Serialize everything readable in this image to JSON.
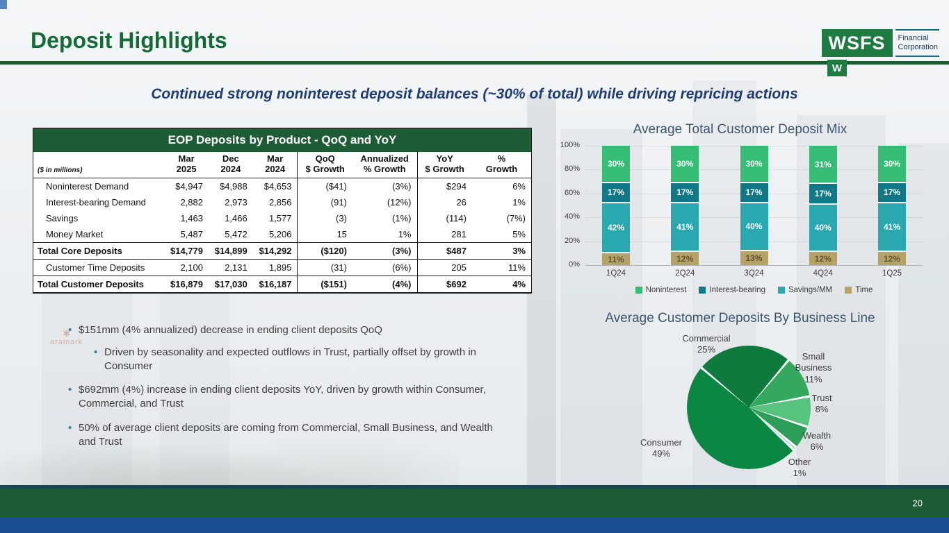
{
  "slide": {
    "title": "Deposit Highlights",
    "subtitle": "Continued strong noninterest deposit balances (~30% of total) while driving repricing actions",
    "page_number": "20"
  },
  "logo": {
    "wordmark": "WSFS",
    "subtext_line1": "Financial",
    "subtext_line2": "Corporation",
    "building_sign": "W"
  },
  "background": {
    "sign_text": "aramark"
  },
  "table": {
    "title": "EOP Deposits by Product - QoQ and YoY",
    "unit_label": "($ in millions)",
    "columns": [
      {
        "line1": "Mar",
        "line2": "2025"
      },
      {
        "line1": "Dec",
        "line2": "2024"
      },
      {
        "line1": "Mar",
        "line2": "2024"
      },
      {
        "line1": "QoQ",
        "line2": "$ Growth"
      },
      {
        "line1": "Annualized",
        "line2": "% Growth"
      },
      {
        "line1": "YoY",
        "line2": "$ Growth"
      },
      {
        "line1": "%",
        "line2": "Growth"
      }
    ],
    "rows": [
      {
        "label": "Noninterest Demand",
        "bold": false,
        "values": [
          "$4,947",
          "$4,988",
          "$4,653",
          "($41)",
          "(3%)",
          "$294",
          "6%"
        ]
      },
      {
        "label": "Interest-bearing Demand",
        "bold": false,
        "values": [
          "2,882",
          "2,973",
          "2,856",
          "(91)",
          "(12%)",
          "26",
          "1%"
        ]
      },
      {
        "label": "Savings",
        "bold": false,
        "values": [
          "1,463",
          "1,466",
          "1,577",
          "(3)",
          "(1%)",
          "(114)",
          "(7%)"
        ]
      },
      {
        "label": "Money Market",
        "bold": false,
        "values": [
          "5,487",
          "5,472",
          "5,206",
          "15",
          "1%",
          "281",
          "5%"
        ]
      },
      {
        "label": "Total Core Deposits",
        "bold": true,
        "values": [
          "$14,779",
          "$14,899",
          "$14,292",
          "($120)",
          "(3%)",
          "$487",
          "3%"
        ]
      },
      {
        "label": "Customer Time Deposits",
        "bold": false,
        "values": [
          "2,100",
          "2,131",
          "1,895",
          "(31)",
          "(6%)",
          "205",
          "11%"
        ]
      },
      {
        "label": "Total Customer Deposits",
        "bold": true,
        "values": [
          "$16,879",
          "$17,030",
          "$16,187",
          "($151)",
          "(4%)",
          "$692",
          "4%"
        ]
      }
    ]
  },
  "bullets": [
    {
      "level": 1,
      "text": "$151mm (4% annualized) decrease in ending client deposits QoQ"
    },
    {
      "level": 2,
      "text": "Driven by seasonality and expected outflows in Trust, partially offset by growth in Consumer"
    },
    {
      "level": 1,
      "text": "$692mm (4%) increase in ending client deposits YoY, driven by growth within Consumer, Commercial, and Trust"
    },
    {
      "level": 1,
      "text": "50% of average client deposits are coming from Commercial, Small Business, and Wealth and Trust"
    }
  ],
  "chart_data": [
    {
      "type": "bar",
      "stacked": true,
      "title": "Average Total Customer Deposit Mix",
      "categories": [
        "1Q24",
        "2Q24",
        "3Q24",
        "4Q24",
        "1Q25"
      ],
      "series": [
        {
          "name": "Time",
          "color": "#b5a266",
          "label_color": "#5f5430",
          "values": [
            11,
            12,
            13,
            12,
            12
          ]
        },
        {
          "name": "Savings/MM",
          "color": "#29a8b0",
          "label_color": "#ffffff",
          "values": [
            42,
            41,
            40,
            40,
            41
          ]
        },
        {
          "name": "Interest-bearing",
          "color": "#0f7987",
          "label_color": "#ffffff",
          "values": [
            17,
            17,
            17,
            17,
            17
          ]
        },
        {
          "name": "Noninterest",
          "color": "#35bd75",
          "label_color": "#ffffff",
          "values": [
            30,
            30,
            30,
            31,
            30
          ]
        }
      ],
      "y_ticks": [
        "0%",
        "20%",
        "40%",
        "60%",
        "80%",
        "100%"
      ],
      "ylim": [
        0,
        100
      ],
      "grid": true,
      "legend": [
        "Noninterest",
        "Interest-bearing",
        "Savings/MM",
        "Time"
      ],
      "legend_position": "bottom"
    },
    {
      "type": "pie",
      "title": "Average Customer Deposits By Business Line",
      "start_angle_deg": -50,
      "slices": [
        {
          "label": "Commercial",
          "pct": 25,
          "color": "#0e7a3e"
        },
        {
          "label": "Small Business",
          "pct": 11,
          "color": "#34a85e"
        },
        {
          "label": "Trust",
          "pct": 8,
          "color": "#56c37e"
        },
        {
          "label": "Wealth",
          "pct": 6,
          "color": "#2d9e57"
        },
        {
          "label": "Other",
          "pct": 1,
          "color": "#a9dcba"
        },
        {
          "label": "Consumer",
          "pct": 49,
          "color": "#0a8743"
        }
      ]
    }
  ],
  "colors": {
    "accent_green": "#1d5c34",
    "logo_green": "#1e7c42",
    "title_green": "#166a38",
    "subtitle_navy": "#1e3c78",
    "chart_title_color": "#3f556e",
    "footer_blue": "#1c4e93"
  }
}
